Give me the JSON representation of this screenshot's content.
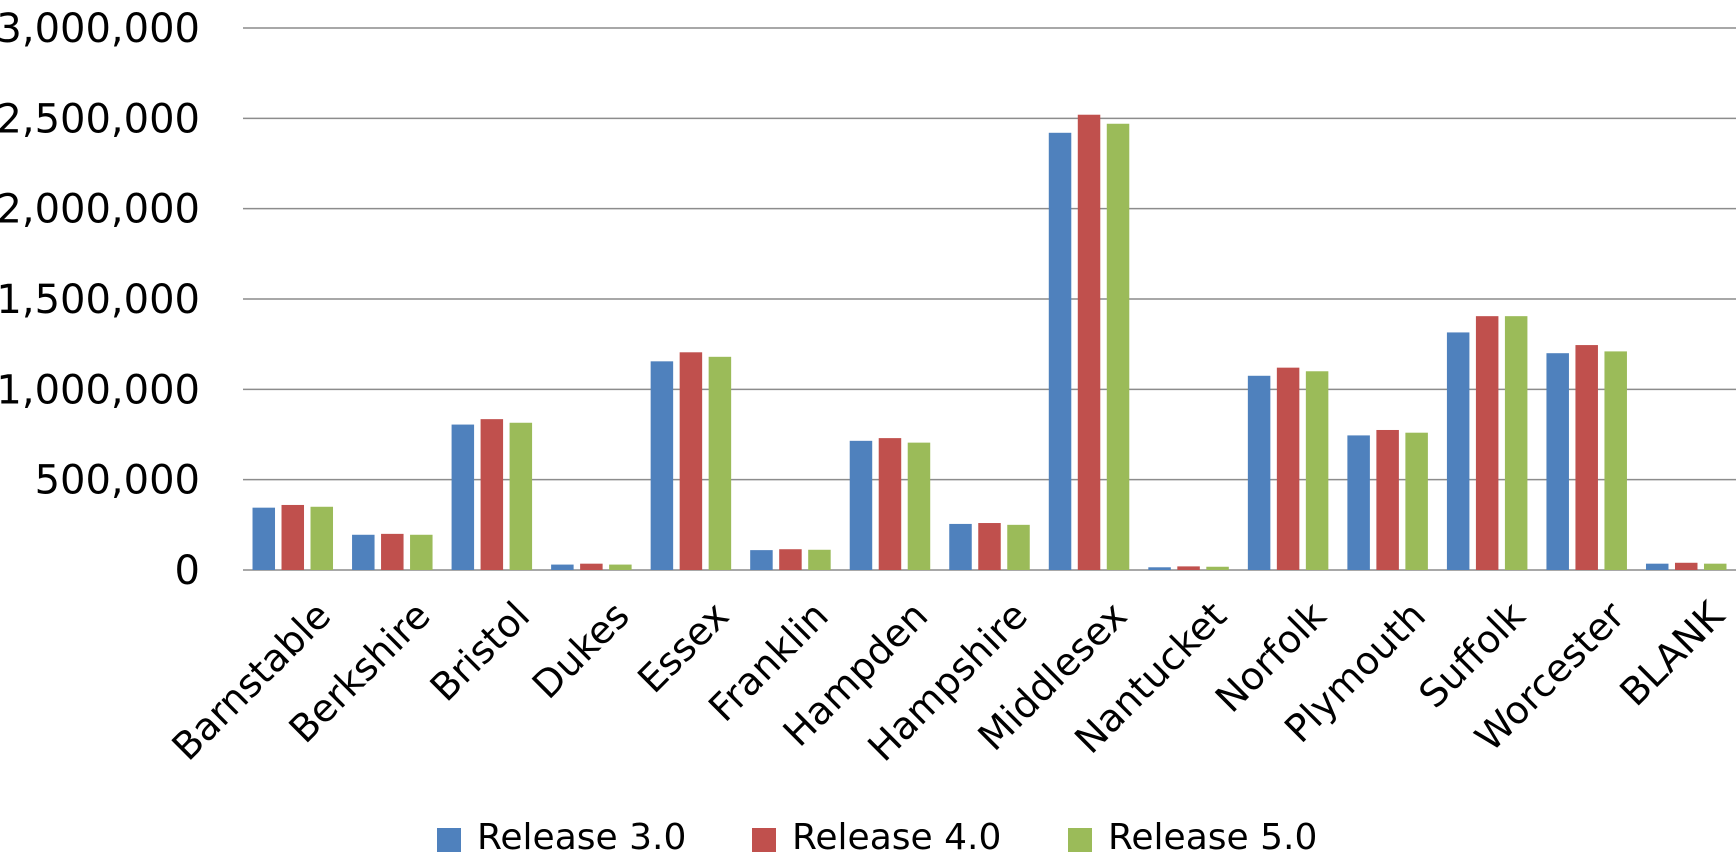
{
  "chart_data": {
    "type": "bar",
    "title": "",
    "xlabel": "",
    "ylabel": "",
    "ylim": [
      0,
      3000000
    ],
    "y_ticks": [
      0,
      500000,
      1000000,
      1500000,
      2000000,
      2500000,
      3000000
    ],
    "y_tick_labels": [
      "0",
      "500,000",
      "1,000,000",
      "1,500,000",
      "2,000,000",
      "2,500,000",
      "3,000,000"
    ],
    "grid": true,
    "legend_position": "bottom",
    "categories": [
      "Barnstable",
      "Berkshire",
      "Bristol",
      "Dukes",
      "Essex",
      "Franklin",
      "Hampden",
      "Hampshire",
      "Middlesex",
      "Nantucket",
      "Norfolk",
      "Plymouth",
      "Suffolk",
      "Worcester",
      "BLANK"
    ],
    "series": [
      {
        "name": "Release 3.0",
        "color": "#4f81bd",
        "values": [
          345000,
          195000,
          805000,
          30000,
          1155000,
          110000,
          715000,
          255000,
          2420000,
          15000,
          1075000,
          745000,
          1315000,
          1200000,
          35000
        ]
      },
      {
        "name": "Release 4.0",
        "color": "#c0504d",
        "values": [
          360000,
          200000,
          835000,
          35000,
          1205000,
          115000,
          730000,
          260000,
          2520000,
          20000,
          1120000,
          775000,
          1405000,
          1245000,
          40000
        ]
      },
      {
        "name": "Release 5.0",
        "color": "#9bbb59",
        "values": [
          350000,
          195000,
          815000,
          30000,
          1180000,
          112000,
          705000,
          250000,
          2470000,
          18000,
          1100000,
          760000,
          1405000,
          1210000,
          35000
        ]
      }
    ]
  }
}
